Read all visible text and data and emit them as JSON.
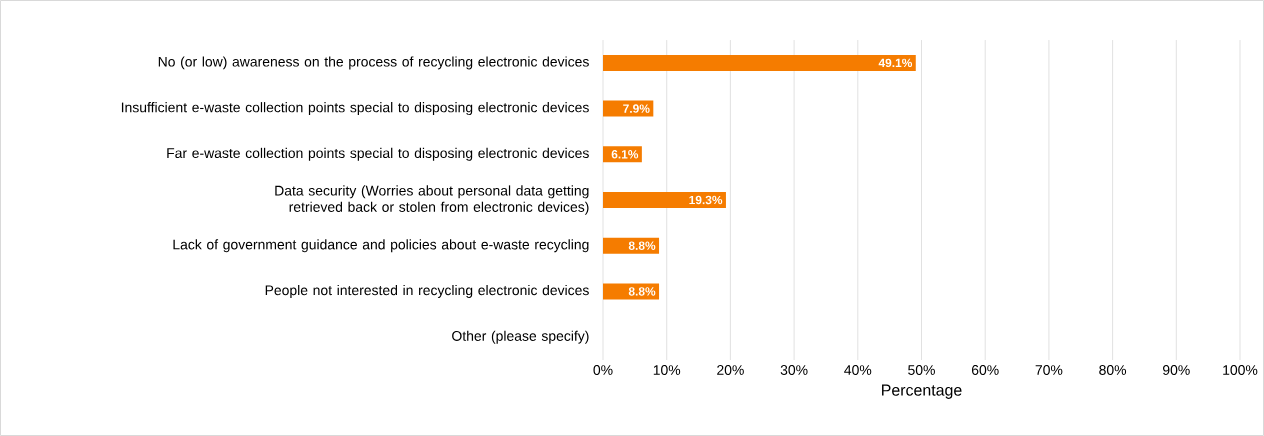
{
  "chart_data": {
    "type": "bar",
    "orientation": "horizontal",
    "xlabel": "Percentage",
    "categories": [
      "No (or low) awareness on the process of recycling electronic devices",
      "Insufficient e-waste collection points special to disposing electronic devices",
      "Far e-waste collection points special to disposing electronic devices",
      "Data security (Worries about personal data getting retrieved back or stolen from electronic devices)",
      "Lack of government guidance and policies about e-waste recycling",
      "People not interested in recycling electronic devices",
      "Other (please specify)"
    ],
    "values": [
      49.1,
      7.9,
      6.1,
      19.3,
      8.8,
      8.8,
      0
    ],
    "value_labels": [
      "49.1%",
      "7.9%",
      "6.1%",
      "19.3%",
      "8.8%",
      "8.8%",
      null
    ],
    "color": "#f57c00",
    "xlim": [
      0,
      100
    ],
    "xticks": [
      {
        "value": 0,
        "label": "0%"
      },
      {
        "value": 10,
        "label": "10%"
      },
      {
        "value": 20,
        "label": "20%"
      },
      {
        "value": 30,
        "label": "30%"
      },
      {
        "value": 40,
        "label": "40%"
      },
      {
        "value": 50,
        "label": "50%"
      },
      {
        "value": 60,
        "label": "60%"
      },
      {
        "value": 70,
        "label": "70%"
      },
      {
        "value": 80,
        "label": "80%"
      },
      {
        "value": 90,
        "label": "90%"
      },
      {
        "value": 100,
        "label": "100%"
      }
    ],
    "grid": "x"
  }
}
